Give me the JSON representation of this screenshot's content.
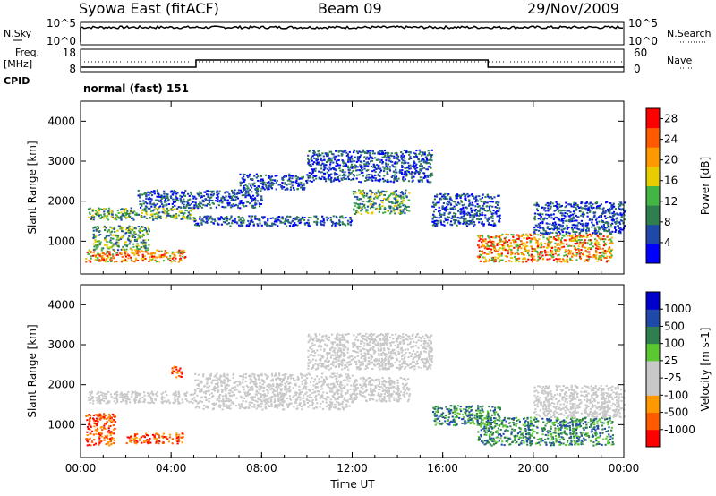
{
  "header": {
    "station": "Syowa East (fitACF)",
    "beam": "Beam 09",
    "date": "29/Nov/2009"
  },
  "panels": {
    "nsky_label": "N.Sky",
    "nsearch_label": "N.Search",
    "freq_label_1": "Freq.",
    "freq_label_2": "[MHz]",
    "nave_label": "Nave",
    "cpid_label": "CPID",
    "cpid_value": "normal (fast) 151",
    "noise_left_ticks": [
      "10^5",
      "10^0"
    ],
    "noise_right_ticks": [
      "10^5",
      "10^0"
    ],
    "freq_left_ticks": [
      "18",
      "8"
    ],
    "freq_right_ticks": [
      "60",
      "0"
    ]
  },
  "colors": {
    "background": "#ffffff",
    "power": [
      "#0000ff",
      "#1f49a8",
      "#2f7f4e",
      "#44b444",
      "#e6cc00",
      "#ff9900",
      "#ff5a00",
      "#ff0000"
    ],
    "velocity": [
      "#ff0000",
      "#ff5a00",
      "#ff9900",
      "#c8c8c8",
      "#c8c8c8",
      "#5bc832",
      "#2f7f4e",
      "#1f49a8",
      "#0000cc"
    ]
  },
  "chart_data": [
    {
      "type": "heatmap",
      "name": "power",
      "xlabel": "",
      "ylabel": "Slant Range [km]",
      "x_tick_labels": [
        "00:00",
        "04:00",
        "08:00",
        "12:00",
        "16:00",
        "20:00",
        "00:00"
      ],
      "x_range_hours": [
        0,
        24
      ],
      "y_ticks": [
        1000,
        2000,
        3000,
        4000
      ],
      "ylim": [
        180,
        4500
      ],
      "colorbar_label": "Power [dB]",
      "colorbar_ticks": [
        4,
        8,
        12,
        16,
        20,
        24,
        28
      ],
      "colorbar_range": [
        0,
        30
      ],
      "regions": [
        {
          "t": [
            0.3,
            5.0
          ],
          "r": [
            1550,
            1850
          ],
          "level": "mid"
        },
        {
          "t": [
            0.2,
            4.6
          ],
          "r": [
            500,
            800
          ],
          "level": "high"
        },
        {
          "t": [
            0.5,
            3.0
          ],
          "r": [
            800,
            1400
          ],
          "level": "mid"
        },
        {
          "t": [
            2.5,
            8.0
          ],
          "r": [
            1850,
            2300
          ],
          "level": "low"
        },
        {
          "t": [
            5.0,
            12.0
          ],
          "r": [
            1400,
            1650
          ],
          "level": "low"
        },
        {
          "t": [
            7.0,
            10.0
          ],
          "r": [
            2300,
            2700
          ],
          "level": "low"
        },
        {
          "t": [
            10.0,
            15.5
          ],
          "r": [
            2500,
            3300
          ],
          "level": "low"
        },
        {
          "t": [
            12.0,
            14.5
          ],
          "r": [
            1700,
            2300
          ],
          "level": "mid"
        },
        {
          "t": [
            15.5,
            18.5
          ],
          "r": [
            1400,
            2200
          ],
          "level": "low"
        },
        {
          "t": [
            17.5,
            23.5
          ],
          "r": [
            500,
            1200
          ],
          "level": "high"
        },
        {
          "t": [
            20.0,
            24.0
          ],
          "r": [
            1200,
            2000
          ],
          "level": "low"
        }
      ]
    },
    {
      "type": "heatmap",
      "name": "velocity",
      "xlabel": "Time UT",
      "ylabel": "Slant Range [km]",
      "x_tick_labels": [
        "00:00",
        "04:00",
        "08:00",
        "12:00",
        "16:00",
        "20:00",
        "00:00"
      ],
      "x_range_hours": [
        0,
        24
      ],
      "y_ticks": [
        1000,
        2000,
        3000,
        4000
      ],
      "ylim": [
        180,
        4500
      ],
      "colorbar_label": "Velocity [m s-1]",
      "colorbar_ticks": [
        "1000",
        "500",
        "100",
        "25",
        "-25",
        "-100",
        "-500",
        "-1000"
      ],
      "regions": [
        {
          "t": [
            0.3,
            5.0
          ],
          "r": [
            1550,
            1850
          ],
          "level": "zero"
        },
        {
          "t": [
            0.2,
            1.5
          ],
          "r": [
            500,
            1300
          ],
          "level": "neg"
        },
        {
          "t": [
            2.0,
            4.6
          ],
          "r": [
            550,
            800
          ],
          "level": "neg"
        },
        {
          "t": [
            4.0,
            4.5
          ],
          "r": [
            2200,
            2500
          ],
          "level": "neg"
        },
        {
          "t": [
            5.0,
            12.0
          ],
          "r": [
            1400,
            2300
          ],
          "level": "zero"
        },
        {
          "t": [
            10.0,
            15.5
          ],
          "r": [
            2400,
            3300
          ],
          "level": "zero"
        },
        {
          "t": [
            12.0,
            14.5
          ],
          "r": [
            1600,
            2200
          ],
          "level": "zero"
        },
        {
          "t": [
            15.5,
            18.5
          ],
          "r": [
            1000,
            1500
          ],
          "level": "pos"
        },
        {
          "t": [
            17.5,
            23.5
          ],
          "r": [
            500,
            1200
          ],
          "level": "pos"
        },
        {
          "t": [
            20.0,
            24.0
          ],
          "r": [
            1200,
            2000
          ],
          "level": "zero"
        }
      ]
    }
  ]
}
